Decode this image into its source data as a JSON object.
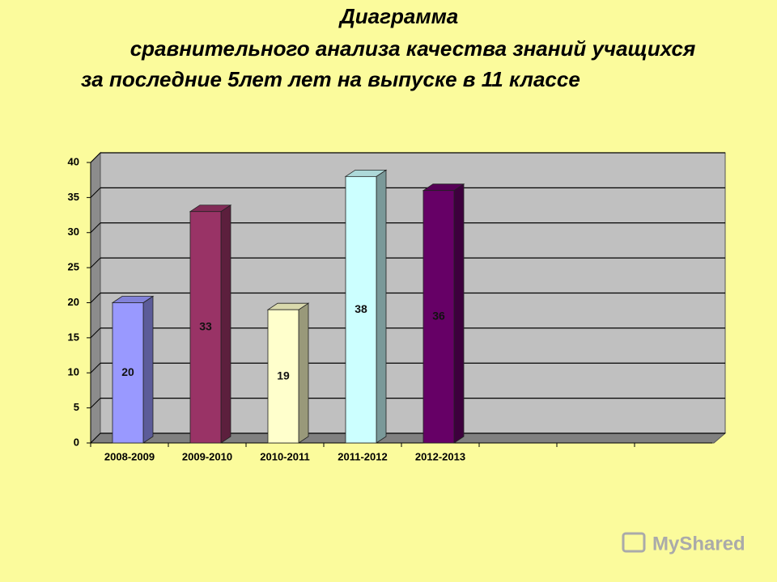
{
  "chart_data": {
    "type": "bar",
    "title": [
      "Диаграмма",
      "сравнительного анализа качества знаний учащихся",
      "за последние 5лет лет на выпуске в 11 классе"
    ],
    "categories": [
      "2008-2009",
      "2009-2010",
      "2010-2011",
      "2011-2012",
      "2012-2013",
      null,
      null,
      null
    ],
    "values": [
      20,
      33,
      19,
      38,
      36,
      null,
      null,
      null
    ],
    "colors": [
      "#9999ff",
      "#993366",
      "#ffffcc",
      "#ccffff",
      "#660066",
      null,
      null,
      null
    ],
    "ylim": [
      0,
      40
    ],
    "yticks": [
      0,
      5,
      10,
      15,
      20,
      25,
      30,
      35,
      40
    ],
    "grid": true,
    "watermark": "MyShared"
  }
}
